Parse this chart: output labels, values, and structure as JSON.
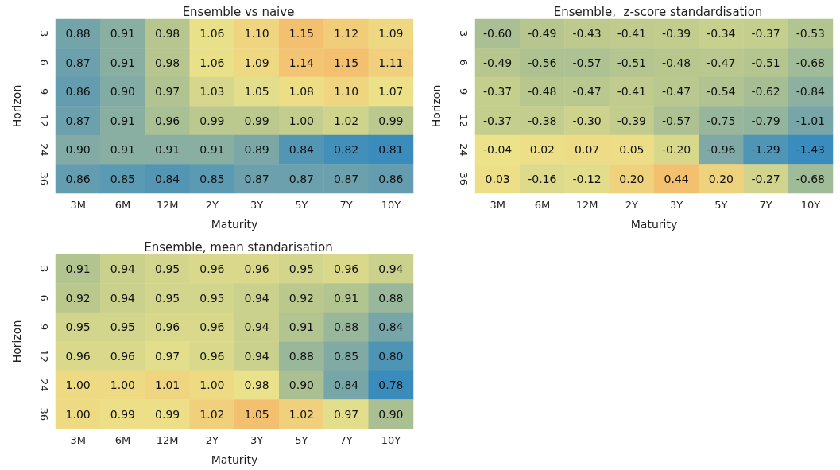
{
  "chart_data": [
    {
      "type": "heatmap",
      "title": "Ensemble vs naive",
      "xlabel": "Maturity",
      "ylabel": "Horizon",
      "data_labels": true,
      "categories": [
        "3M",
        "6M",
        "12M",
        "2Y",
        "3Y",
        "5Y",
        "7Y",
        "10Y"
      ],
      "y_categories": [
        "3",
        "6",
        "9",
        "12",
        "24",
        "36"
      ],
      "cells": [
        [
          0.88,
          0.91,
          0.98,
          1.06,
          1.1,
          1.15,
          1.12,
          1.09
        ],
        [
          0.87,
          0.91,
          0.98,
          1.06,
          1.09,
          1.14,
          1.15,
          1.11
        ],
        [
          0.86,
          0.9,
          0.97,
          1.03,
          1.05,
          1.08,
          1.1,
          1.07
        ],
        [
          0.87,
          0.91,
          0.96,
          0.99,
          0.99,
          1.0,
          1.02,
          0.99
        ],
        [
          0.9,
          0.91,
          0.91,
          0.91,
          0.89,
          0.84,
          0.82,
          0.81
        ],
        [
          0.86,
          0.85,
          0.84,
          0.85,
          0.87,
          0.87,
          0.87,
          0.86
        ]
      ],
      "cell_labels": [
        [
          "0.88",
          "0.91",
          "0.98",
          "1.06",
          "1.10",
          "1.15",
          "1.12",
          "1.09"
        ],
        [
          "0.87",
          "0.91",
          "0.98",
          "1.06",
          "1.09",
          "1.14",
          "1.15",
          "1.11"
        ],
        [
          "0.86",
          "0.90",
          "0.97",
          "1.03",
          "1.05",
          "1.08",
          "1.10",
          "1.07"
        ],
        [
          "0.87",
          "0.91",
          "0.96",
          "0.99",
          "0.99",
          "1.00",
          "1.02",
          "0.99"
        ],
        [
          "0.90",
          "0.91",
          "0.91",
          "0.91",
          "0.89",
          "0.84",
          "0.82",
          "0.81"
        ],
        [
          "0.86",
          "0.85",
          "0.84",
          "0.85",
          "0.87",
          "0.87",
          "0.87",
          "0.86"
        ]
      ]
    },
    {
      "type": "heatmap",
      "title": "Ensemble,  z-score standardisation",
      "xlabel": "Maturity",
      "ylabel": "Horizon",
      "data_labels": true,
      "categories": [
        "3M",
        "6M",
        "12M",
        "2Y",
        "3Y",
        "5Y",
        "7Y",
        "10Y"
      ],
      "y_categories": [
        "3",
        "6",
        "9",
        "12",
        "24",
        "36"
      ],
      "cells": [
        [
          -0.6,
          -0.49,
          -0.43,
          -0.41,
          -0.39,
          -0.34,
          -0.37,
          -0.53
        ],
        [
          -0.49,
          -0.56,
          -0.57,
          -0.51,
          -0.48,
          -0.47,
          -0.51,
          -0.68
        ],
        [
          -0.37,
          -0.48,
          -0.47,
          -0.41,
          -0.47,
          -0.54,
          -0.62,
          -0.84
        ],
        [
          -0.37,
          -0.38,
          -0.3,
          -0.39,
          -0.57,
          -0.75,
          -0.79,
          -1.01
        ],
        [
          -0.04,
          0.02,
          0.07,
          0.05,
          -0.2,
          -0.96,
          -1.29,
          -1.43
        ],
        [
          0.03,
          -0.16,
          -0.12,
          0.2,
          0.44,
          0.2,
          -0.27,
          -0.68
        ]
      ],
      "cell_labels": [
        [
          "-0.60",
          "-0.49",
          "-0.43",
          "-0.41",
          "-0.39",
          "-0.34",
          "-0.37",
          "-0.53"
        ],
        [
          "-0.49",
          "-0.56",
          "-0.57",
          "-0.51",
          "-0.48",
          "-0.47",
          "-0.51",
          "-0.68"
        ],
        [
          "-0.37",
          "-0.48",
          "-0.47",
          "-0.41",
          "-0.47",
          "-0.54",
          "-0.62",
          "-0.84"
        ],
        [
          "-0.37",
          "-0.38",
          "-0.30",
          "-0.39",
          "-0.57",
          "-0.75",
          "-0.79",
          "-1.01"
        ],
        [
          "-0.04",
          "0.02",
          "0.07",
          "0.05",
          "-0.20",
          "-0.96",
          "-1.29",
          "-1.43"
        ],
        [
          "0.03",
          "-0.16",
          "-0.12",
          "0.20",
          "0.44",
          "0.20",
          "-0.27",
          "-0.68"
        ]
      ]
    },
    {
      "type": "heatmap",
      "title": "Ensemble, mean standarisation",
      "xlabel": "Maturity",
      "ylabel": "Horizon",
      "data_labels": true,
      "categories": [
        "3M",
        "6M",
        "12M",
        "2Y",
        "3Y",
        "5Y",
        "7Y",
        "10Y"
      ],
      "y_categories": [
        "3",
        "6",
        "9",
        "12",
        "24",
        "36"
      ],
      "cells": [
        [
          0.91,
          0.94,
          0.95,
          0.96,
          0.96,
          0.95,
          0.96,
          0.94
        ],
        [
          0.92,
          0.94,
          0.95,
          0.95,
          0.94,
          0.92,
          0.91,
          0.88
        ],
        [
          0.95,
          0.95,
          0.96,
          0.96,
          0.94,
          0.91,
          0.88,
          0.84
        ],
        [
          0.96,
          0.96,
          0.97,
          0.96,
          0.94,
          0.88,
          0.85,
          0.8
        ],
        [
          1.0,
          1.0,
          1.01,
          1.0,
          0.98,
          0.9,
          0.84,
          0.78
        ],
        [
          1.0,
          0.99,
          0.99,
          1.02,
          1.05,
          1.02,
          0.97,
          0.9
        ]
      ],
      "cell_labels": [
        [
          "0.91",
          "0.94",
          "0.95",
          "0.96",
          "0.96",
          "0.95",
          "0.96",
          "0.94"
        ],
        [
          "0.92",
          "0.94",
          "0.95",
          "0.95",
          "0.94",
          "0.92",
          "0.91",
          "0.88"
        ],
        [
          "0.95",
          "0.95",
          "0.96",
          "0.96",
          "0.94",
          "0.91",
          "0.88",
          "0.84"
        ],
        [
          "0.96",
          "0.96",
          "0.97",
          "0.96",
          "0.94",
          "0.88",
          "0.85",
          "0.80"
        ],
        [
          "1.00",
          "1.00",
          "1.01",
          "1.00",
          "0.98",
          "0.90",
          "0.84",
          "0.78"
        ],
        [
          "1.00",
          "0.99",
          "0.99",
          "1.02",
          "1.05",
          "1.02",
          "0.97",
          "0.90"
        ]
      ]
    }
  ]
}
